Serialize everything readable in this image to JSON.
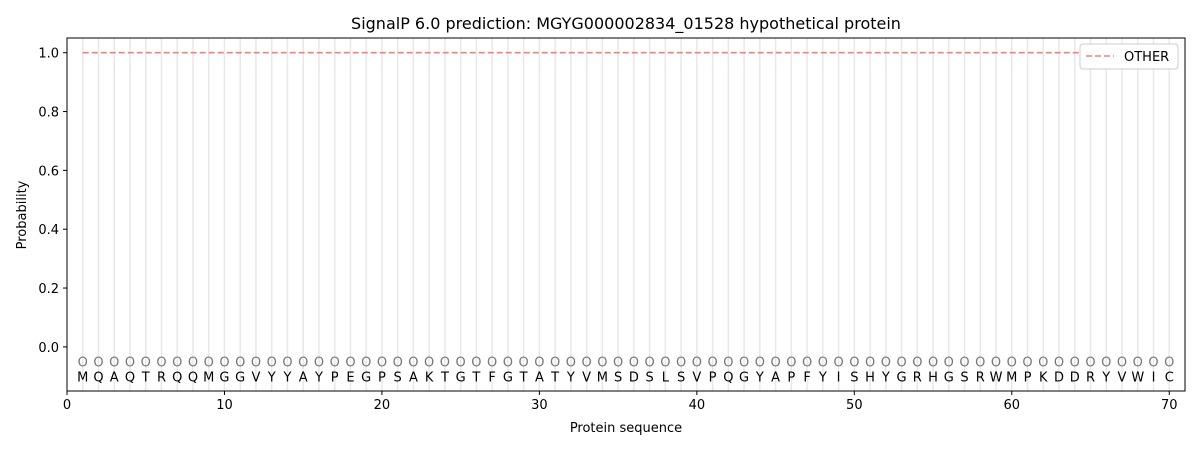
{
  "chart_data": {
    "type": "line",
    "title": "SignalP 6.0 prediction: MGYG000002834_01528 hypothetical protein",
    "xlabel": "Protein sequence",
    "ylabel": "Probability",
    "xlim": [
      0,
      71
    ],
    "ylim": [
      -0.15,
      1.05
    ],
    "xticks": [
      0,
      10,
      20,
      30,
      40,
      50,
      60,
      70
    ],
    "yticks": [
      0.0,
      0.2,
      0.4,
      0.6,
      0.8,
      1.0
    ],
    "ytick_labels": [
      "0.0",
      "0.2",
      "0.4",
      "0.6",
      "0.8",
      "1.0"
    ],
    "grid": "vertical lines at each residue",
    "legend_position": "top-right",
    "sequence": [
      "M",
      "Q",
      "A",
      "Q",
      "T",
      "R",
      "Q",
      "Q",
      "M",
      "G",
      "G",
      "V",
      "Y",
      "Y",
      "A",
      "Y",
      "P",
      "E",
      "G",
      "P",
      "S",
      "A",
      "K",
      "T",
      "G",
      "T",
      "F",
      "G",
      "T",
      "A",
      "T",
      "Y",
      "V",
      "M",
      "S",
      "D",
      "S",
      "L",
      "S",
      "V",
      "P",
      "Q",
      "G",
      "Y",
      "A",
      "P",
      "F",
      "Y",
      "I",
      "S",
      "H",
      "Y",
      "G",
      "R",
      "H",
      "G",
      "S",
      "R",
      "W",
      "M",
      "P",
      "K",
      "D",
      "D",
      "R",
      "Y",
      "V",
      "W",
      "I",
      "C"
    ],
    "predicted_labels": "OOOOOOOOOOOOOOOOOOOOOOOOOOOOOOOOOOOOOOOOOOOOOOOOOOOOOOOOOOOOOOOOOOOOOO",
    "series": [
      {
        "name": "OTHER",
        "color": "#f08080",
        "style": "dashed",
        "x_range": [
          1,
          70
        ],
        "value": 1.0
      }
    ]
  }
}
